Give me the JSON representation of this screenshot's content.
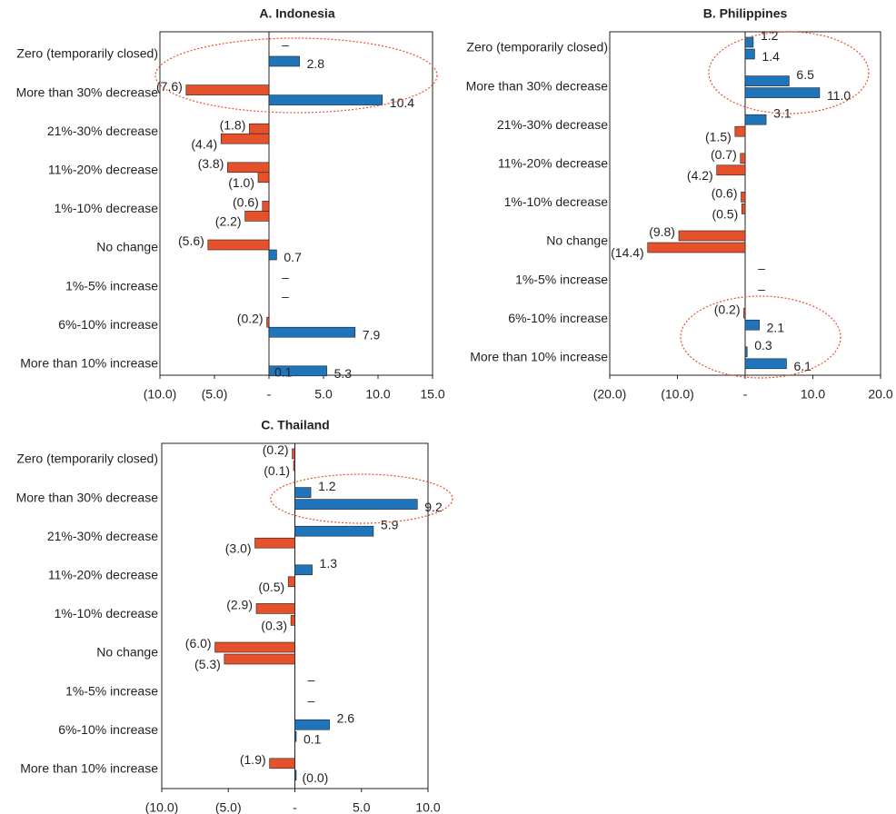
{
  "figure": {
    "categories": [
      "Zero (temporarily closed)",
      "More than 30% decrease",
      "21%-30% decrease",
      "11%-20% decrease",
      "1%-10% decrease",
      "No change",
      "1%-5% increase",
      "6%-10% increase",
      "More than 10% increase"
    ],
    "colors": {
      "series_orange": "#e5512b",
      "series_blue": "#1f75bb",
      "highlight": "#e5512b",
      "axis": "#231f20"
    }
  },
  "chart_data": [
    {
      "type": "bar",
      "orientation": "horizontal",
      "title": "A. Indonesia",
      "categories": [
        "Zero (temporarily closed)",
        "More than 30% decrease",
        "21%-30% decrease",
        "11%-20% decrease",
        "1%-10% decrease",
        "No change",
        "1%-5% increase",
        "6%-10% increase",
        "More than 10% increase"
      ],
      "series": [
        {
          "name": "orange",
          "color": "#e5512b",
          "values": [
            null,
            -7.6,
            -1.8,
            -3.8,
            -0.6,
            -5.6,
            null,
            -0.2,
            null
          ],
          "labels": [
            "–",
            "(7.6)",
            "(1.8)",
            "(3.8)",
            "(0.6)",
            "(5.6)",
            "–",
            "(0.2)",
            ""
          ]
        },
        {
          "name": "blue",
          "color": "#1f75bb",
          "values": [
            2.8,
            10.4,
            -4.4,
            -1.0,
            -2.2,
            0.7,
            null,
            7.9,
            5.3
          ],
          "labels": [
            "2.8",
            "10.4",
            "(4.4)",
            "(1.0)",
            "(2.2)",
            "0.7",
            "–",
            "7.9",
            "5.3"
          ]
        }
      ],
      "extra_labels": [
        {
          "category": "More than 10% increase",
          "text": "0.1"
        }
      ],
      "xlim": [
        -10,
        15
      ],
      "ticks": [
        -10,
        -5,
        0,
        5,
        10,
        15
      ],
      "tick_labels": [
        "(10.0)",
        "(5.0)",
        "-",
        "5.0",
        "10.0",
        "15.0"
      ],
      "highlights": [
        "Zero (temporarily closed)",
        "More than 30% decrease"
      ]
    },
    {
      "type": "bar",
      "orientation": "horizontal",
      "title": "B. Philippines",
      "categories": [
        "Zero (temporarily closed)",
        "More than 30% decrease",
        "21%-30% decrease",
        "11%-20% decrease",
        "1%-10% decrease",
        "No change",
        "1%-5% increase",
        "6%-10% increase",
        "More than 10% increase"
      ],
      "series": [
        {
          "name": "first",
          "color": "#1f75bb",
          "values": [
            1.2,
            6.5,
            3.1,
            -0.7,
            -0.6,
            -9.8,
            null,
            -0.2,
            0.3
          ],
          "labels": [
            "1.2",
            "6.5",
            "3.1",
            "(0.7)",
            "(0.6)",
            "(9.8)",
            "–",
            "(0.2)",
            "0.3"
          ]
        },
        {
          "name": "second",
          "color": "#1f75bb",
          "values": [
            1.4,
            11.0,
            -1.5,
            -4.2,
            -0.5,
            -14.4,
            null,
            2.1,
            6.1
          ],
          "labels": [
            "1.4",
            "11.0",
            "(1.5)",
            "(4.2)",
            "(0.5)",
            "(14.4)",
            "–",
            "2.1",
            "6.1"
          ]
        }
      ],
      "xlim": [
        -20,
        20
      ],
      "ticks": [
        -20,
        -10,
        0,
        10,
        20
      ],
      "tick_labels": [
        "(20.0)",
        "(10.0)",
        "-",
        "10.0",
        "20.0"
      ],
      "highlights": [
        "More than 30% decrease",
        "More than 10% increase"
      ]
    },
    {
      "type": "bar",
      "orientation": "horizontal",
      "title": "C. Thailand",
      "categories": [
        "Zero (temporarily closed)",
        "More than 30% decrease",
        "21%-30% decrease",
        "11%-20% decrease",
        "1%-10% decrease",
        "No change",
        "1%-5% increase",
        "6%-10% increase",
        "More than 10% increase"
      ],
      "series": [
        {
          "name": "first",
          "color": "#1f75bb",
          "values": [
            -0.2,
            1.2,
            5.9,
            1.3,
            -2.9,
            -6.0,
            null,
            2.6,
            -1.9
          ],
          "labels": [
            "(0.2)",
            "1.2",
            "5.9",
            "1.3",
            "(2.9)",
            "(6.0)",
            "–",
            "2.6",
            "(1.9)"
          ]
        },
        {
          "name": "second",
          "color": "#1f75bb",
          "values": [
            -0.1,
            9.2,
            -3.0,
            -0.5,
            -0.3,
            -5.3,
            null,
            0.1,
            -0.0
          ],
          "labels": [
            "(0.1)",
            "9.2",
            "(3.0)",
            "(0.5)",
            "(0.3)",
            "(5.3)",
            "–",
            "0.1",
            "(0.0)"
          ]
        }
      ],
      "xlim": [
        -10,
        10
      ],
      "ticks": [
        -10,
        -5,
        0,
        5,
        10
      ],
      "tick_labels": [
        "(10.0)",
        "(5.0)",
        "-",
        "5.0",
        "10.0"
      ],
      "highlights": [
        "More than 30% decrease"
      ]
    }
  ]
}
